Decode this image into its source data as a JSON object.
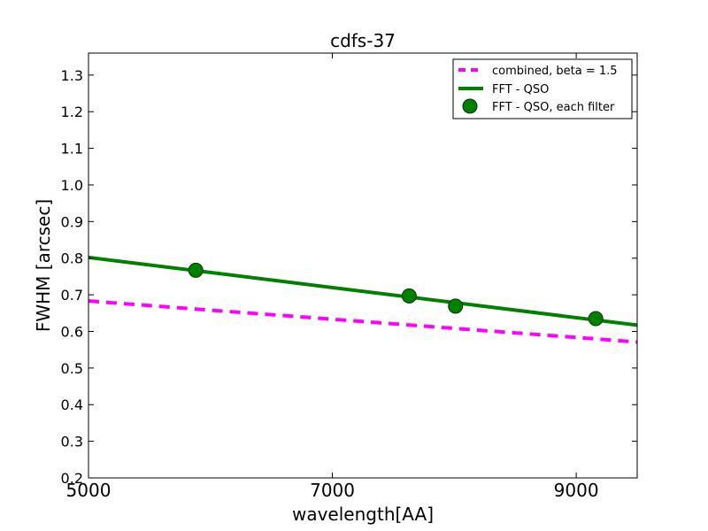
{
  "chart_data": {
    "type": "line",
    "title": "cdfs-37",
    "xlabel": "wavelength[AA]",
    "ylabel": "FWHM [arcsec]",
    "xlim": [
      5000,
      9500
    ],
    "ylim": [
      0.2,
      1.36
    ],
    "x_ticks": [
      5000,
      7000,
      9000
    ],
    "x_tick_labels": [
      "5000",
      "7000",
      "9000"
    ],
    "y_ticks": [
      0.2,
      0.3,
      0.4,
      0.5,
      0.6,
      0.7,
      0.8,
      0.9,
      1.0,
      1.1,
      1.2,
      1.3
    ],
    "y_tick_labels": [
      "0.2",
      "0.3",
      "0.4",
      "0.5",
      "0.6",
      "0.7",
      "0.8",
      "0.9",
      "1.0",
      "1.1",
      "1.2",
      "1.3"
    ],
    "grid": false,
    "legend_position": "top-right",
    "series": [
      {
        "name": "combined, beta = 1.5",
        "kind": "dashed-line",
        "color": "#ff00ff",
        "x": [
          5000,
          9500
        ],
        "y": [
          0.683,
          0.571
        ]
      },
      {
        "name": "FFT - QSO",
        "kind": "line",
        "color": "#008000",
        "x": [
          5000,
          9500
        ],
        "y": [
          0.802,
          0.617
        ]
      },
      {
        "name": "FFT - QSO, each filter",
        "kind": "scatter",
        "color": "#008000",
        "x": [
          5880,
          7630,
          8010,
          9160
        ],
        "y": [
          0.767,
          0.697,
          0.669,
          0.635
        ]
      }
    ]
  }
}
